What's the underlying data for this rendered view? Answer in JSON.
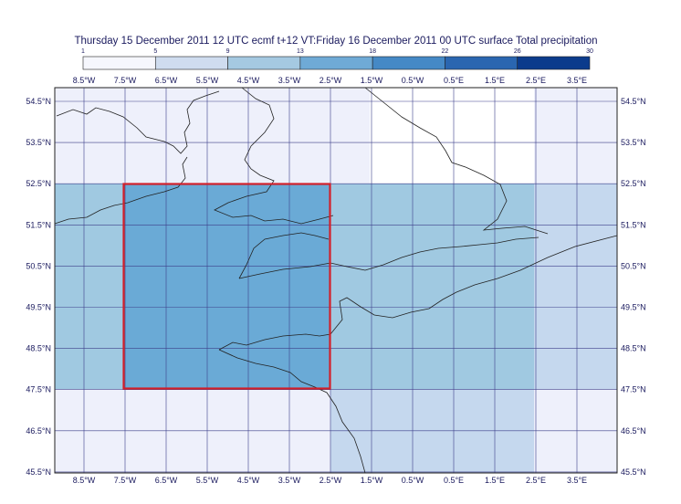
{
  "title": "Thursday 15 December 2011 12 UTC ecmf t+12 VT:Friday 16 December 2011 00 UTC surface  Total precipitation",
  "colorbar": {
    "levels": [
      1,
      5,
      9,
      13,
      18,
      22,
      26,
      30
    ],
    "colors": [
      "#f6f7fd",
      "#cfdcef",
      "#a5c9e1",
      "#6faad6",
      "#4589c6",
      "#2a66b0",
      "#0b3b8c"
    ]
  },
  "longitude_labels": [
    "8.5°W",
    "7.5°W",
    "6.5°W",
    "5.5°W",
    "4.5°W",
    "3.5°W",
    "2.5°W",
    "1.5°W",
    "0.5°W",
    "0.5°E",
    "1.5°E",
    "2.5°E",
    "3.5°E"
  ],
  "latitude_labels": [
    "54.5°N",
    "53.5°N",
    "52.5°N",
    "51.5°N",
    "50.5°N",
    "49.5°N",
    "48.5°N",
    "47.5°N",
    "46.5°N",
    "45.5°N"
  ]
}
